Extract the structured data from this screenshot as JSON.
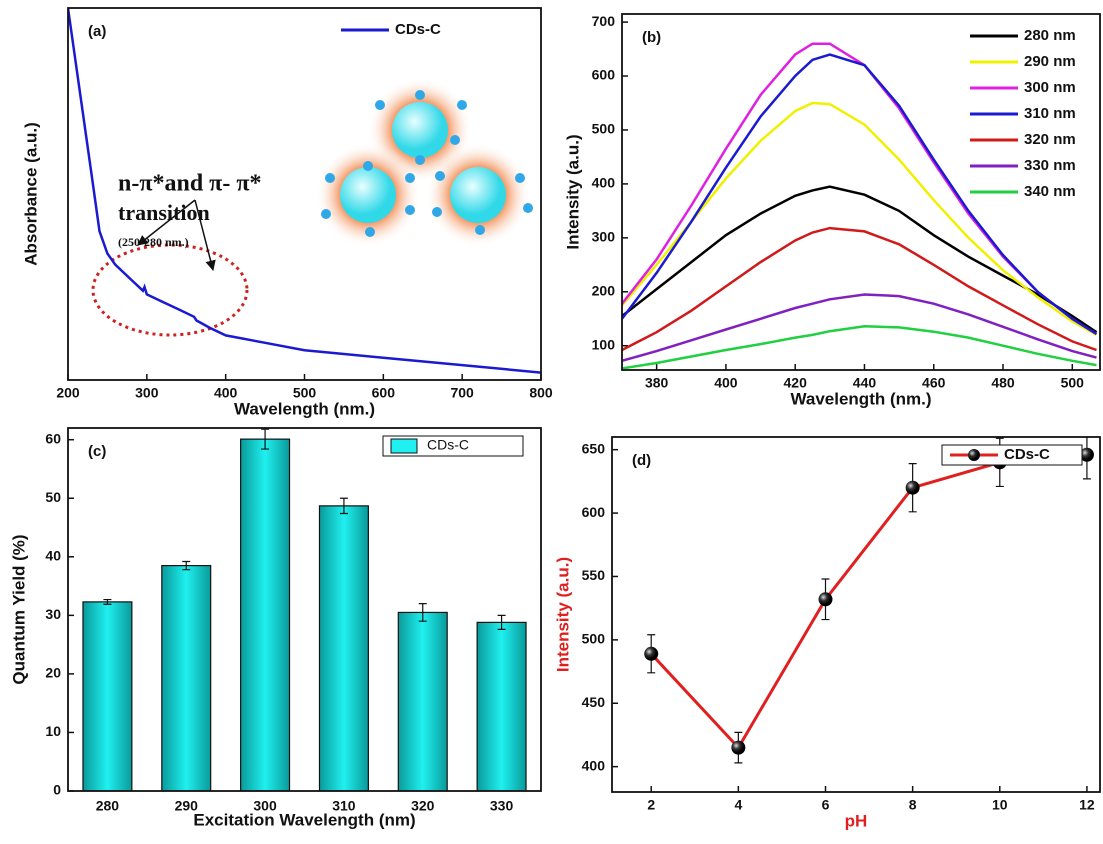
{
  "chart_data": [
    {
      "type": "line",
      "panel_label": "(a)",
      "x_label": "Wavelength (nm.)",
      "y_label": "Absorbance (a.u.)",
      "xlim": [
        200,
        800
      ],
      "xticks": [
        200,
        300,
        400,
        500,
        600,
        700,
        800
      ],
      "ylim": [
        0,
        100
      ],
      "x": [
        200,
        210,
        220,
        230,
        240,
        250,
        260,
        280,
        295,
        297,
        300,
        320,
        340,
        360,
        363,
        380,
        400,
        450,
        500,
        600,
        700,
        800
      ],
      "series": [
        {
          "name": "CDs-C",
          "color": "#1a1ad0",
          "values": [
            100,
            85,
            70,
            55,
            40,
            34,
            31,
            27,
            24,
            25,
            23,
            21,
            19,
            17,
            16,
            14,
            12,
            10,
            8,
            6,
            4,
            2
          ]
        }
      ],
      "annotations": [
        "n-π*and π- π*",
        "transition",
        "(250-280 nm.)"
      ]
    },
    {
      "type": "line",
      "panel_label": "(b)",
      "x_label": "Wavelength (nm.)",
      "y_label": "Intensity (a.u.)",
      "xlim": [
        370,
        508
      ],
      "xticks": [
        380,
        400,
        420,
        440,
        460,
        480,
        500
      ],
      "ylim": [
        55,
        715
      ],
      "yticks": [
        100,
        200,
        300,
        400,
        500,
        600,
        700
      ],
      "x": [
        370,
        380,
        390,
        400,
        410,
        420,
        425,
        430,
        440,
        450,
        460,
        470,
        480,
        490,
        500,
        507
      ],
      "series": [
        {
          "name": "280 nm",
          "color": "#000000",
          "values": [
            155,
            205,
            255,
            305,
            345,
            378,
            388,
            395,
            380,
            350,
            305,
            265,
            230,
            195,
            155,
            125
          ]
        },
        {
          "name": "290 nm",
          "color": "#f0f000",
          "values": [
            175,
            250,
            330,
            410,
            480,
            535,
            550,
            548,
            510,
            445,
            370,
            300,
            240,
            190,
            145,
            120
          ]
        },
        {
          "name": "300 nm",
          "color": "#e020e0",
          "values": [
            178,
            260,
            360,
            465,
            565,
            640,
            660,
            660,
            620,
            540,
            440,
            345,
            265,
            200,
            150,
            122
          ]
        },
        {
          "name": "310 nm",
          "color": "#1a1ad0",
          "values": [
            150,
            235,
            330,
            430,
            525,
            600,
            630,
            640,
            620,
            545,
            445,
            350,
            268,
            200,
            150,
            122
          ]
        },
        {
          "name": "320 nm",
          "color": "#d01a1a",
          "values": [
            92,
            125,
            165,
            210,
            255,
            295,
            310,
            318,
            312,
            288,
            250,
            210,
            175,
            140,
            108,
            92
          ]
        },
        {
          "name": "330 nm",
          "color": "#8020c0",
          "values": [
            72,
            90,
            110,
            130,
            150,
            170,
            178,
            186,
            195,
            192,
            178,
            158,
            135,
            112,
            90,
            78
          ]
        },
        {
          "name": "340 nm",
          "color": "#20d040",
          "values": [
            58,
            68,
            80,
            92,
            103,
            115,
            120,
            127,
            136,
            134,
            126,
            115,
            100,
            85,
            72,
            64
          ]
        }
      ]
    },
    {
      "type": "bar",
      "panel_label": "(c)",
      "x_label": "Excitation Wavelength (nm)",
      "y_label": "Quantum Yield (%)",
      "categories": [
        "280",
        "290",
        "300",
        "310",
        "320",
        "330"
      ],
      "ylim": [
        0,
        62
      ],
      "yticks": [
        0,
        10,
        20,
        30,
        40,
        50,
        60
      ],
      "series": [
        {
          "name": "CDs-C",
          "color": "#20f0f0",
          "values": [
            32.3,
            38.5,
            60.1,
            48.7,
            30.5,
            28.8
          ],
          "errors": [
            0.4,
            0.7,
            1.7,
            1.3,
            1.5,
            1.2
          ]
        }
      ]
    },
    {
      "type": "line",
      "panel_label": "(d)",
      "x_label": "pH",
      "y_label": "Intensity (a.u.)",
      "label_color": "#e02020",
      "markers": true,
      "xlim": [
        1.1,
        12.3
      ],
      "xticks": [
        2,
        4,
        6,
        8,
        10,
        12
      ],
      "ylim": [
        380,
        660
      ],
      "yticks": [
        400,
        450,
        500,
        550,
        600,
        650
      ],
      "x": [
        2,
        4,
        6,
        8,
        10,
        12
      ],
      "series": [
        {
          "name": "CDs-C",
          "color": "#e02020",
          "values": [
            489,
            415,
            532,
            620,
            640,
            646
          ],
          "errors": [
            15,
            12,
            16,
            19,
            19,
            19
          ]
        }
      ]
    }
  ]
}
